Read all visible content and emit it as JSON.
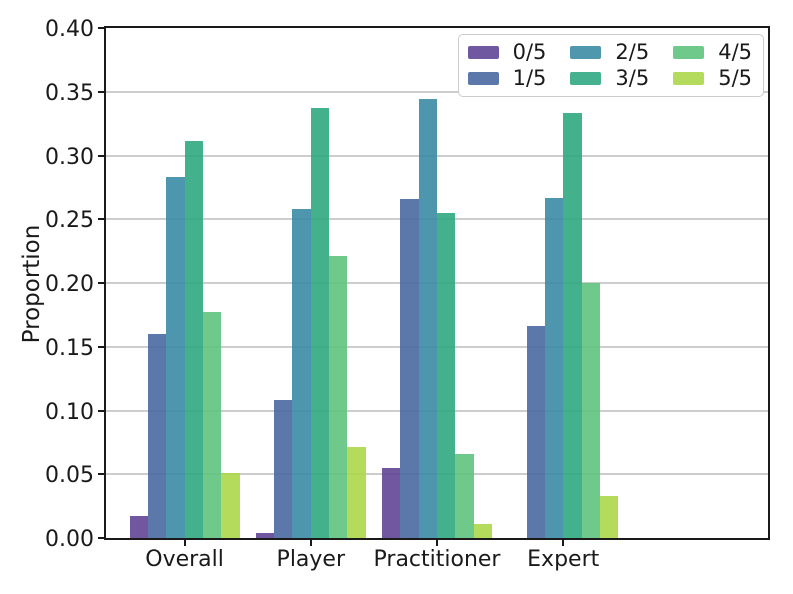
{
  "chart_data": {
    "type": "bar",
    "title": "",
    "xlabel": "",
    "ylabel": "Proportion",
    "categories": [
      "Overall",
      "Player",
      "Practitioner",
      "Expert"
    ],
    "series": [
      {
        "name": "0/5",
        "color": "#7058A0",
        "values": [
          0.017,
          0.004,
          0.055,
          0.0
        ]
      },
      {
        "name": "1/5",
        "color": "#5C78AB",
        "values": [
          0.16,
          0.108,
          0.266,
          0.166
        ]
      },
      {
        "name": "2/5",
        "color": "#4F97AD",
        "values": [
          0.283,
          0.258,
          0.344,
          0.267
        ]
      },
      {
        "name": "3/5",
        "color": "#45B18E",
        "values": [
          0.311,
          0.337,
          0.255,
          0.333
        ]
      },
      {
        "name": "4/5",
        "color": "#6FC98A",
        "values": [
          0.177,
          0.221,
          0.066,
          0.2
        ]
      },
      {
        "name": "5/5",
        "color": "#B4DB5B",
        "values": [
          0.051,
          0.071,
          0.011,
          0.033
        ]
      }
    ],
    "ylim": [
      0,
      0.4
    ],
    "yticks": [
      "0.00",
      "0.05",
      "0.10",
      "0.15",
      "0.20",
      "0.25",
      "0.30",
      "0.35",
      "0.40"
    ],
    "grid": true,
    "legend_position": "upper right",
    "legend_columns": 3
  },
  "colors": {
    "spine": "#1a1a1a",
    "grid": "#cdcdcd",
    "text": "#1a1a1a",
    "legend_border": "#cccccc",
    "legend_background": "#ffffff",
    "background": "#ffffff"
  }
}
